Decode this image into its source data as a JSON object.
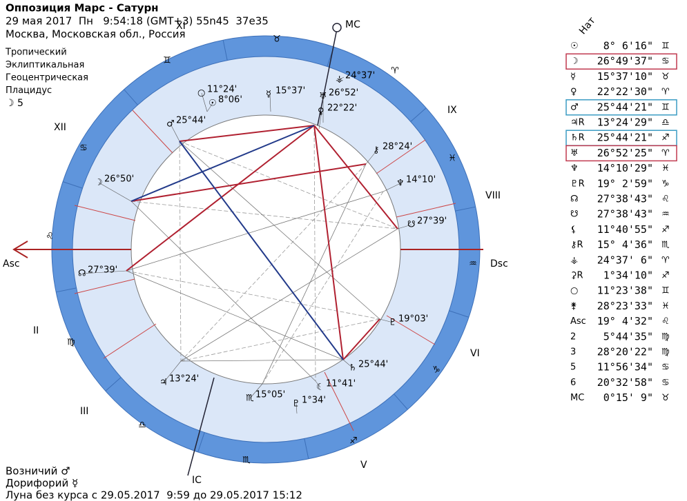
{
  "header": {
    "title": "Оппозиция Марс - Сатурн",
    "date_line": "29 мая 2017  Пн   9:54:18 (GMT+3) 55n45  37e35",
    "place_line": "Москва, Московская обл., Россия"
  },
  "settings": [
    "Тропический",
    "Эклиптикальная",
    "Геоцентрическая",
    "Плацидус",
    "☽ 5"
  ],
  "wheel": {
    "angles": [
      "MC",
      "Asc",
      "Dsc",
      "IC"
    ],
    "houses": [
      "XII",
      "XI",
      "IX",
      "VIII",
      "VI",
      "V",
      "III",
      "II"
    ],
    "signs": [
      "♉",
      "♈",
      "♓",
      "♒",
      "♑",
      "♐",
      "♏",
      "♎",
      "♍",
      "♌",
      "♋",
      "♊"
    ],
    "planet_labels": [
      {
        "glyph": "♂",
        "text": "25°44'"
      },
      {
        "glyph": "☽",
        "text": "26°50'"
      },
      {
        "glyph": "☊",
        "text": "27°39'"
      },
      {
        "glyph": "○",
        "text": "11°24'"
      },
      {
        "glyph": "☉",
        "text": "8°06'"
      },
      {
        "glyph": "☿",
        "text": "15°37'"
      },
      {
        "glyph": "⚶",
        "text": "24°37'"
      },
      {
        "glyph": "♅",
        "text": "26°52'"
      },
      {
        "glyph": "♀",
        "text": "22°22'"
      },
      {
        "glyph": "⚷",
        "text": "28°24'"
      },
      {
        "glyph": "♆",
        "text": "14°10'"
      },
      {
        "glyph": "☋",
        "text": "27°39'"
      },
      {
        "glyph": "♇",
        "text": "19°03'"
      },
      {
        "glyph": "♄",
        "text": "25°44'"
      },
      {
        "glyph": "☾",
        "text": "11°41'"
      },
      {
        "glyph": "♇",
        "text": "1°34'"
      },
      {
        "glyph": "♏",
        "text": "15°05'"
      },
      {
        "glyph": "♃",
        "text": "13°24'"
      }
    ]
  },
  "table": {
    "heading": "Нат",
    "rows": [
      {
        "symbol": "☉",
        "degree": "8° 6'16\"",
        "sign": "♊"
      },
      {
        "symbol": "☽",
        "degree": "26°49'37\"",
        "sign": "♋",
        "highlight": "#c0394f"
      },
      {
        "symbol": "☿",
        "degree": "15°37'10\"",
        "sign": "♉"
      },
      {
        "symbol": "♀",
        "degree": "22°22'30\"",
        "sign": "♈"
      },
      {
        "symbol": "♂",
        "degree": "25°44'21\"",
        "sign": "♊",
        "highlight": "#3a9cc4"
      },
      {
        "symbol": "♃R",
        "degree": "13°24'29\"",
        "sign": "♎"
      },
      {
        "symbol": "♄R",
        "degree": "25°44'21\"",
        "sign": "♐",
        "highlight": "#3a9cc4"
      },
      {
        "symbol": "♅",
        "degree": "26°52'25\"",
        "sign": "♈",
        "highlight": "#c0394f"
      },
      {
        "symbol": "♆",
        "degree": "14°10'29\"",
        "sign": "♓"
      },
      {
        "symbol": "♇R",
        "degree": "19° 2'59\"",
        "sign": "♑"
      },
      {
        "symbol": "☊",
        "degree": "27°38'43\"",
        "sign": "♌"
      },
      {
        "symbol": "☋",
        "degree": "27°38'43\"",
        "sign": "♒"
      },
      {
        "symbol": "⚸",
        "degree": "11°40'55\"",
        "sign": "♐"
      },
      {
        "symbol": "⚷R",
        "degree": "15° 4'36\"",
        "sign": "♏"
      },
      {
        "symbol": "⚶",
        "degree": "24°37' 6\"",
        "sign": "♈"
      },
      {
        "symbol": "⚳R",
        "degree": "1°34'10\"",
        "sign": "♐"
      },
      {
        "symbol": "○",
        "degree": "11°23'38\"",
        "sign": "♊"
      },
      {
        "symbol": "⚵",
        "degree": "28°23'33\"",
        "sign": "♓"
      },
      {
        "symbol": "Asc",
        "degree": "19° 4'32\"",
        "sign": "♌"
      },
      {
        "symbol": "2",
        "degree": "5°44'35\"",
        "sign": "♍"
      },
      {
        "symbol": "3",
        "degree": "28°20'22\"",
        "sign": "♍"
      },
      {
        "symbol": "5",
        "degree": "11°56'34\"",
        "sign": "♋"
      },
      {
        "symbol": "6",
        "degree": "20°32'58\"",
        "sign": "♋"
      },
      {
        "symbol": "MC",
        "degree": "0°15' 9\"",
        "sign": "♉"
      }
    ]
  },
  "footer": [
    "Возничий ♂",
    "Дорифорий ☿",
    "Луна без курса с 29.05.2017  9:59 до 29.05.2017 15:12"
  ]
}
